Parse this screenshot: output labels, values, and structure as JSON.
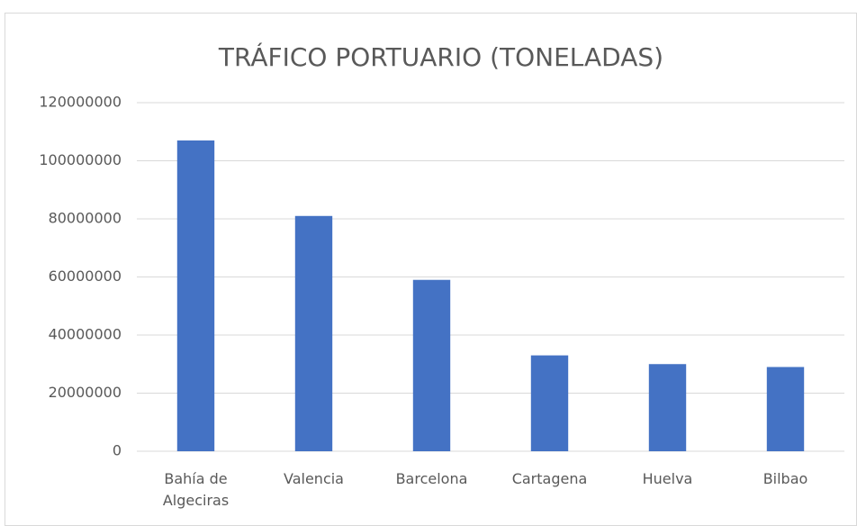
{
  "chart_data": {
    "type": "bar",
    "title": "TRÁFICO PORTUARIO (TONELADAS)",
    "categories": [
      "Bahía de Algeciras",
      "Valencia",
      "Barcelona",
      "Cartagena",
      "Huelva",
      "Bilbao"
    ],
    "values": [
      107000000,
      81000000,
      59000000,
      33000000,
      30000000,
      29000000
    ],
    "color": "#4472c4",
    "ylim": [
      0,
      120000000
    ],
    "yticks": [
      0,
      20000000,
      40000000,
      60000000,
      80000000,
      100000000,
      120000000
    ],
    "grid": true
  }
}
